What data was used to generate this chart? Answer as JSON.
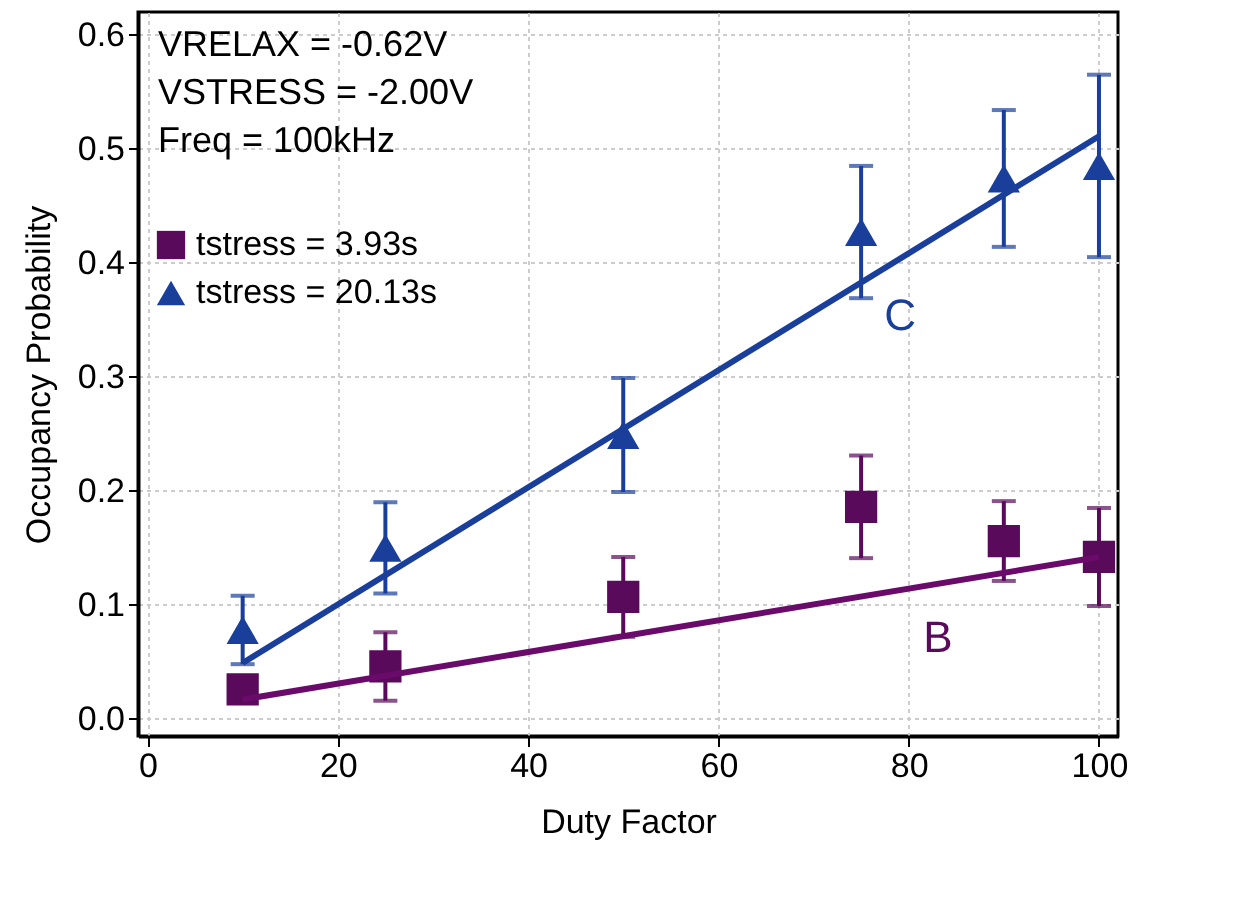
{
  "chart_data": {
    "type": "scatter",
    "xlabel": "Duty Factor",
    "ylabel": "Occupancy Probability",
    "xlim": [
      -1,
      102
    ],
    "ylim": [
      -0.015,
      0.62
    ],
    "xticks": [
      0,
      20,
      40,
      60,
      80,
      100
    ],
    "yticks": [
      {
        "value": 0,
        "label": "0.0"
      },
      0.1,
      0.2,
      0.3,
      0.4,
      0.5,
      0.6
    ],
    "grid": true,
    "legend": "top left",
    "annotations": [
      "VRELAX = -0.62V",
      "VSTRESS = -2.00V",
      "Freq = 100kHz",
      "B",
      "C"
    ],
    "series": [
      {
        "name": "tstress = 3.93s",
        "marker": "square",
        "color": "#5a0a5a",
        "x": [
          10,
          25,
          50,
          75,
          90,
          100
        ],
        "values": [
          0.026,
          0.046,
          0.107,
          0.186,
          0.156,
          0.142
        ],
        "errors": [
          0.01,
          0.03,
          0.035,
          0.045,
          0.035,
          0.043
        ]
      },
      {
        "name": "tstress = 20.13s",
        "marker": "triangle",
        "color": "#1a3f9a",
        "x": [
          10,
          25,
          50,
          75,
          90,
          100
        ],
        "values": [
          0.078,
          0.15,
          0.249,
          0.427,
          0.474,
          0.485
        ],
        "errors": [
          0.03,
          0.04,
          0.05,
          0.058,
          0.06,
          0.08
        ]
      },
      {
        "type": "line",
        "color": "#6a0a6a",
        "x": [
          10,
          100
        ],
        "values": [
          0.017,
          0.142
        ]
      },
      {
        "type": "line",
        "color": "#1a3f9a",
        "x": [
          10,
          100
        ],
        "values": [
          0.049,
          0.511
        ]
      }
    ]
  }
}
